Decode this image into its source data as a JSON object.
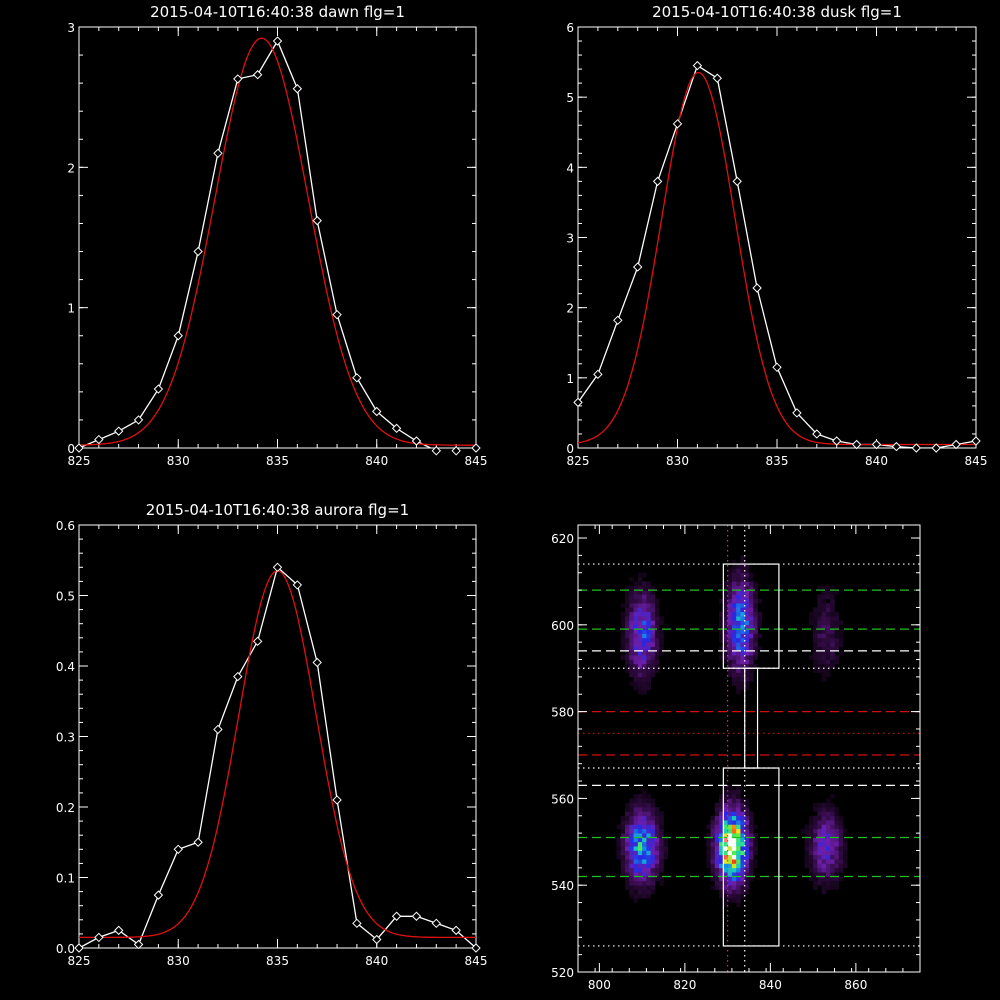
{
  "chart_data": [
    {
      "id": "dawn",
      "type": "line",
      "title": "2015-04-10T16:40:38 dawn flg=1",
      "xlim": [
        825,
        845
      ],
      "ylim": [
        0,
        3
      ],
      "x_ticks": [
        825,
        830,
        835,
        840,
        845
      ],
      "y_ticks": [
        0,
        1,
        2,
        3
      ],
      "series": [
        {
          "role": "observed",
          "color": "#ffffff",
          "marker": "diamond",
          "x": [
            825,
            826,
            827,
            828,
            829,
            830,
            831,
            832,
            833,
            834,
            835,
            836,
            837,
            838,
            839,
            840,
            841,
            842,
            843,
            844,
            845
          ],
          "y": [
            0.0,
            0.06,
            0.12,
            0.2,
            0.42,
            0.8,
            1.4,
            2.1,
            2.63,
            2.66,
            2.9,
            2.56,
            1.62,
            0.95,
            0.5,
            0.26,
            0.14,
            0.05,
            -0.02,
            -0.02,
            0.0
          ]
        },
        {
          "role": "fit",
          "color": "#e01010",
          "curve": "gaussian",
          "amplitude": 2.9,
          "center": 834.2,
          "sigma": 2.35,
          "offset": 0.02
        }
      ]
    },
    {
      "id": "dusk",
      "type": "line",
      "title": "2015-04-10T16:40:38 dusk flg=1",
      "xlim": [
        825,
        845
      ],
      "ylim": [
        0,
        6
      ],
      "x_ticks": [
        825,
        830,
        835,
        840,
        845
      ],
      "y_ticks": [
        0,
        1,
        2,
        3,
        4,
        5,
        6
      ],
      "series": [
        {
          "role": "observed",
          "color": "#ffffff",
          "marker": "diamond",
          "x": [
            825,
            826,
            827,
            828,
            829,
            830,
            831,
            832,
            833,
            834,
            835,
            836,
            837,
            838,
            839,
            840,
            841,
            842,
            843,
            844,
            845
          ],
          "y": [
            0.65,
            1.05,
            1.82,
            2.58,
            3.8,
            4.62,
            5.45,
            5.27,
            3.8,
            2.28,
            1.15,
            0.5,
            0.2,
            0.1,
            0.05,
            0.05,
            0.02,
            0.0,
            0.0,
            0.05,
            0.1
          ]
        },
        {
          "role": "fit",
          "color": "#e01010",
          "curve": "gaussian",
          "amplitude": 5.3,
          "center": 831.05,
          "sigma": 1.85,
          "offset": 0.05
        }
      ]
    },
    {
      "id": "aurora",
      "type": "line",
      "title": "2015-04-10T16:40:38 aurora flg=1",
      "xlim": [
        825,
        845
      ],
      "ylim": [
        0,
        0.6
      ],
      "x_ticks": [
        825,
        830,
        835,
        840,
        845
      ],
      "y_ticks": [
        0.0,
        0.1,
        0.2,
        0.3,
        0.4,
        0.5,
        0.6
      ],
      "series": [
        {
          "role": "observed",
          "color": "#ffffff",
          "marker": "diamond",
          "x": [
            825,
            826,
            827,
            828,
            829,
            830,
            831,
            832,
            833,
            834,
            835,
            836,
            837,
            838,
            839,
            840,
            841,
            842,
            843,
            844,
            845
          ],
          "y": [
            0.0,
            0.015,
            0.025,
            0.005,
            0.075,
            0.14,
            0.15,
            0.31,
            0.385,
            0.435,
            0.54,
            0.515,
            0.405,
            0.21,
            0.035,
            0.012,
            0.045,
            0.045,
            0.035,
            0.025,
            0.0
          ]
        },
        {
          "role": "fit",
          "color": "#e01010",
          "curve": "gaussian",
          "amplitude": 0.52,
          "center": 835.0,
          "sigma": 1.95,
          "offset": 0.015
        }
      ]
    },
    {
      "id": "image",
      "type": "heatmap",
      "title": "",
      "xlim": [
        795,
        875
      ],
      "ylim": [
        520,
        623
      ],
      "x_ticks": [
        800,
        820,
        840,
        860
      ],
      "y_ticks": [
        520,
        540,
        560,
        580,
        600,
        620
      ],
      "x_minor_step": 4,
      "y_minor_step": 4,
      "blobs": [
        {
          "x": 810,
          "y": 598,
          "sx": 2.3,
          "sy": 6.5,
          "amp": 0.42
        },
        {
          "x": 833,
          "y": 600,
          "sx": 2.2,
          "sy": 7.0,
          "amp": 0.52
        },
        {
          "x": 853,
          "y": 598,
          "sx": 2.4,
          "sy": 7.0,
          "amp": 0.15
        },
        {
          "x": 810,
          "y": 549,
          "sx": 2.6,
          "sy": 5.5,
          "amp": 0.58
        },
        {
          "x": 831,
          "y": 549,
          "sx": 2.4,
          "sy": 5.5,
          "amp": 1.0
        },
        {
          "x": 853,
          "y": 549,
          "sx": 2.6,
          "sy": 5.5,
          "amp": 0.32
        }
      ],
      "hlines": [
        {
          "y": 608,
          "color": "#20c020",
          "style": "dashed"
        },
        {
          "y": 599,
          "color": "#20c020",
          "style": "dashed"
        },
        {
          "y": 594,
          "color": "#ffffff",
          "style": "dashed"
        },
        {
          "y": 590,
          "color": "#ffffff",
          "style": "dotted"
        },
        {
          "y": 614,
          "color": "#ffffff",
          "style": "dotted"
        },
        {
          "y": 580,
          "color": "#d01010",
          "style": "dashed"
        },
        {
          "y": 575,
          "color": "#d01010",
          "style": "dotted"
        },
        {
          "y": 570,
          "color": "#d01010",
          "style": "dashed"
        },
        {
          "y": 567,
          "color": "#ffffff",
          "style": "dotted"
        },
        {
          "y": 563,
          "color": "#ffffff",
          "style": "dashed"
        },
        {
          "y": 551,
          "color": "#20c020",
          "style": "dashed"
        },
        {
          "y": 542,
          "color": "#20c020",
          "style": "dashed"
        },
        {
          "y": 526,
          "color": "#ffffff",
          "style": "dotted"
        }
      ],
      "vlines": [
        {
          "x": 830,
          "color": "#d0309a",
          "style": "dotted"
        },
        {
          "x": 834,
          "color": "#ffffff",
          "style": "dotted"
        }
      ],
      "boxes": [
        {
          "x0": 829,
          "x1": 842,
          "y0": 590,
          "y1": 614
        },
        {
          "x0": 829,
          "x1": 842,
          "y0": 526,
          "y1": 567
        }
      ],
      "connector": {
        "x0": 834,
        "x1": 837,
        "y0": 567,
        "y1": 590
      }
    }
  ]
}
